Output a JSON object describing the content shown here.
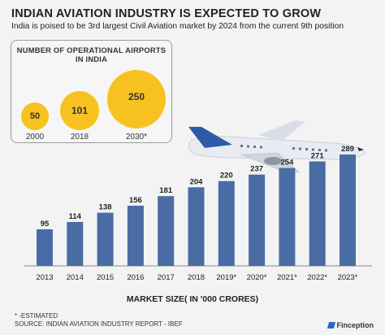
{
  "title": "INDIAN AVIATION INDUSTRY IS EXPECTED TO GROW",
  "subtitle": "India is poised to be 3rd largest Civil Aviation market by 2024 from the current 9th position",
  "airports": {
    "title_line1": "NUMBER OF OPERATIONAL AIRPORTS",
    "title_line2": "IN INDIA",
    "items": [
      {
        "value": "50",
        "year": "2000"
      },
      {
        "value": "101",
        "year": "2018"
      },
      {
        "value": "250",
        "year": "2030*"
      }
    ]
  },
  "chart_data": {
    "type": "bar",
    "categories": [
      "2013",
      "2014",
      "2015",
      "2016",
      "2017",
      "2018",
      "2019*",
      "2020*",
      "2021*",
      "2022*",
      "2023*"
    ],
    "values": [
      95,
      114,
      138,
      156,
      181,
      204,
      220,
      237,
      254,
      271,
      289
    ],
    "xlabel": "MARKET SIZE( IN '000 CRORES)",
    "ylabel": "",
    "ylim": [
      0,
      289
    ],
    "bar_color": "#4a6ca5",
    "grid": false
  },
  "footnote_line1": "* -ESTIMATED",
  "footnote_line2": "SOURCE: INDIAN AVIATION INDUSTRY REPORT - IBEF",
  "brand": "Finception",
  "colors": {
    "circle": "#f7c21f",
    "bar": "#4a6ca5",
    "plane_tail": "#2e5aa8"
  }
}
